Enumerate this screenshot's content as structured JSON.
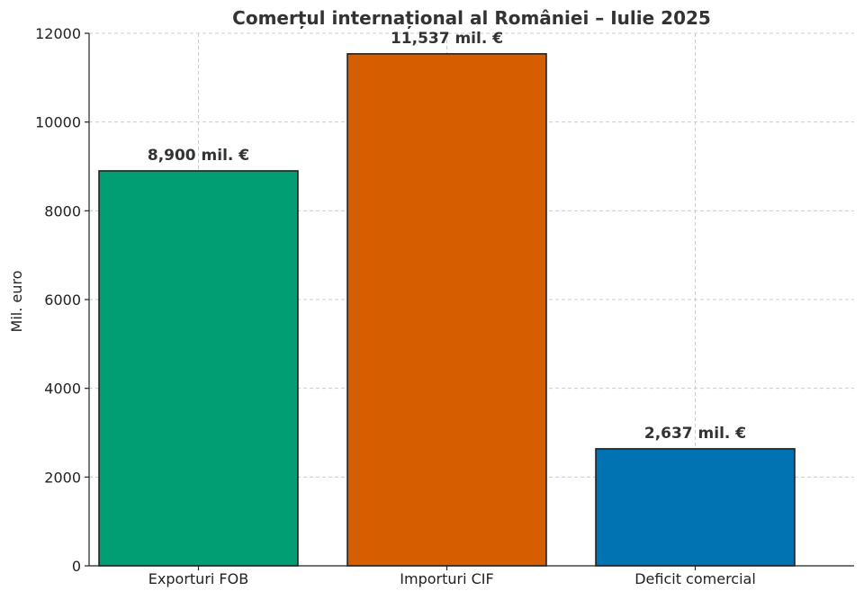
{
  "chart_data": {
    "type": "bar",
    "title": "Comerțul internațional al României – Iulie 2025",
    "xlabel": "",
    "ylabel": "Mil. euro",
    "ylim": [
      0,
      12000
    ],
    "yticks": [
      0,
      2000,
      4000,
      6000,
      8000,
      10000,
      12000
    ],
    "categories": [
      "Exporturi FOB",
      "Importuri CIF",
      "Deficit comercial"
    ],
    "values": [
      8900,
      11537,
      2637
    ],
    "value_labels": [
      "8,900 mil. €",
      "11,537 mil. €",
      "2,637 mil. €"
    ],
    "colors": [
      "#029e73",
      "#d55e00",
      "#0173b2"
    ],
    "grid": true,
    "legend": "none"
  }
}
